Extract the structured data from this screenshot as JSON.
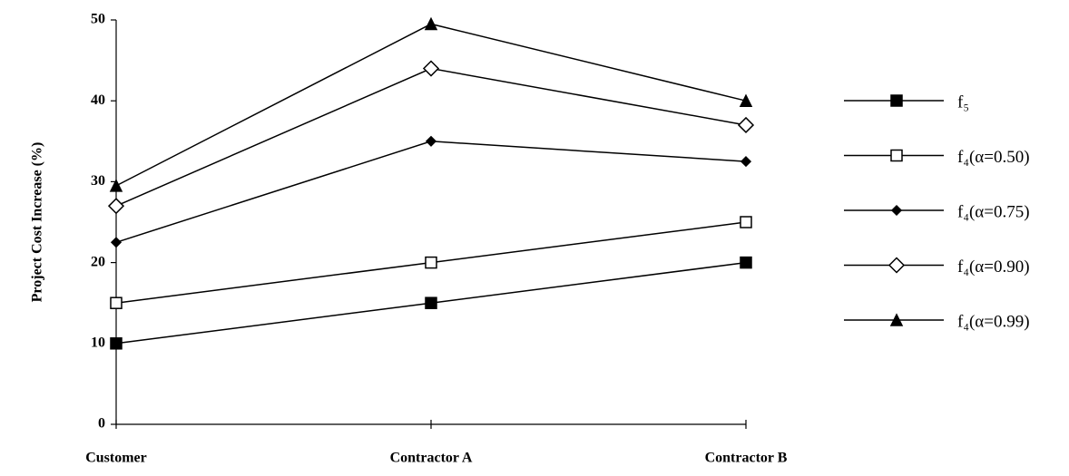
{
  "chart_data": {
    "type": "line",
    "y_label": "Project Cost Increase (%)",
    "categories": [
      "Customer",
      "Contractor A",
      "Contractor B"
    ],
    "ylim": [
      0,
      50
    ],
    "yticks": [
      0,
      10,
      20,
      30,
      40,
      50
    ],
    "series": [
      {
        "name": "f₅",
        "color": "#000000",
        "marker": "square-filled",
        "values": [
          10,
          15,
          20
        ]
      },
      {
        "name": "f₄(α=0.50)",
        "color": "#000000",
        "marker": "square-open",
        "values": [
          15,
          20,
          25
        ]
      },
      {
        "name": "f₄(α=0.75)",
        "color": "#000000",
        "marker": "diamond-filled",
        "values": [
          22.5,
          35,
          32.5
        ]
      },
      {
        "name": "f₄(α=0.90)",
        "color": "#000000",
        "marker": "diamond-open",
        "values": [
          27,
          44,
          37
        ]
      },
      {
        "name": "f₄(α=0.99)",
        "color": "#000000",
        "marker": "triangle-filled",
        "values": [
          29.5,
          49.5,
          40
        ]
      }
    ]
  }
}
